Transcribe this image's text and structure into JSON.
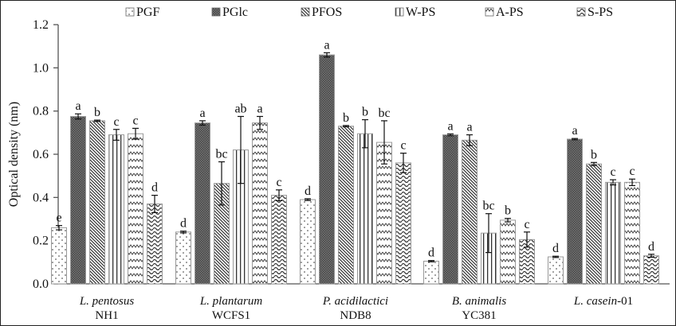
{
  "chart_data": {
    "type": "bar",
    "title": "",
    "xlabel": "",
    "ylabel": "Optical density (nm)",
    "ylim": [
      0,
      1.2
    ],
    "yticks": [
      "0.0",
      "0.2",
      "0.4",
      "0.6",
      "0.8",
      "1.0",
      "1.2"
    ],
    "grid": false,
    "legend_position": "top",
    "categories": [
      {
        "species": "L. pentosus",
        "strain": "NH1",
        "species_suffix": ""
      },
      {
        "species": "L. plantarum",
        "strain": "WCFS1",
        "species_suffix": ""
      },
      {
        "species": "P. acidilactici",
        "strain": "NDB8",
        "species_suffix": ""
      },
      {
        "species": "B. animalis",
        "strain": "YC381",
        "species_suffix": ""
      },
      {
        "species": "L. casein",
        "strain": "",
        "species_suffix": "-01"
      }
    ],
    "series": [
      {
        "name": "PGF",
        "pattern": "dots",
        "values": [
          0.26,
          0.24,
          0.39,
          0.105,
          0.125
        ],
        "errors": [
          0.01,
          0.004,
          0.004,
          0.003,
          0.003
        ],
        "letters": [
          "e",
          "d",
          "d",
          "d",
          "d"
        ]
      },
      {
        "name": "PGlc",
        "pattern": "dense-dark",
        "values": [
          0.775,
          0.745,
          1.06,
          0.69,
          0.67
        ],
        "errors": [
          0.012,
          0.01,
          0.01,
          0.004,
          0.003
        ],
        "letters": [
          "a",
          "a",
          "a",
          "a",
          "a"
        ]
      },
      {
        "name": "PFOS",
        "pattern": "diagonal",
        "values": [
          0.755,
          0.465,
          0.73,
          0.665,
          0.555
        ],
        "errors": [
          0.003,
          0.1,
          0.003,
          0.025,
          0.007
        ],
        "letters": [
          "b",
          "bc",
          "b",
          "a",
          "b"
        ]
      },
      {
        "name": "W-PS",
        "pattern": "vertical",
        "values": [
          0.69,
          0.62,
          0.695,
          0.235,
          0.47
        ],
        "errors": [
          0.025,
          0.155,
          0.065,
          0.09,
          0.012
        ],
        "letters": [
          "c",
          "ab",
          "b",
          "bc",
          "c"
        ]
      },
      {
        "name": "A-PS",
        "pattern": "zigzag-small",
        "values": [
          0.695,
          0.745,
          0.655,
          0.295,
          0.47
        ],
        "errors": [
          0.025,
          0.03,
          0.1,
          0.008,
          0.015
        ],
        "letters": [
          "c",
          "a",
          "bc",
          "b",
          "c"
        ]
      },
      {
        "name": "S-PS",
        "pattern": "wave",
        "values": [
          0.37,
          0.41,
          0.56,
          0.205,
          0.13
        ],
        "errors": [
          0.04,
          0.025,
          0.045,
          0.035,
          0.007
        ],
        "letters": [
          "d",
          "c",
          "c",
          "c",
          "d"
        ]
      }
    ]
  }
}
